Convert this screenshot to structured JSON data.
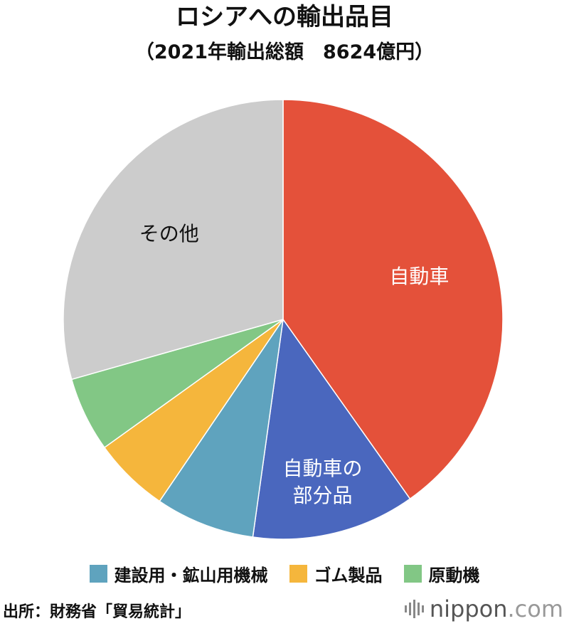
{
  "chart_data": {
    "type": "pie",
    "title": "ロシアへの輸出品目",
    "subtitle": "（2021年輸出総額　8624億円）",
    "start_angle_deg": 0,
    "direction": "clockwise",
    "slices": [
      {
        "label": "自動車",
        "value": 40.2,
        "color": "#E4513A",
        "label_color": "#ffffff",
        "labeled": true
      },
      {
        "label": "自動車の部分品",
        "value": 12.0,
        "color": "#4A67BE",
        "label_color": "#ffffff",
        "labeled": true,
        "label_lines": [
          "自動車の",
          "部分品"
        ]
      },
      {
        "label": "建設用・鉱山用機械",
        "value": 7.3,
        "color": "#5FA3BE",
        "label_color": "#ffffff",
        "labeled": false
      },
      {
        "label": "ゴム製品",
        "value": 5.6,
        "color": "#F5B63C",
        "label_color": "#ffffff",
        "labeled": false
      },
      {
        "label": "原動機",
        "value": 5.5,
        "color": "#82C785",
        "label_color": "#ffffff",
        "labeled": false
      },
      {
        "label": "その他",
        "value": 29.4,
        "color": "#CCCCCC",
        "label_color": "#111111",
        "labeled": true
      }
    ],
    "legend": {
      "placement": "bottom",
      "entries": [
        {
          "label": "建設用・鉱山用機械",
          "color": "#5FA3BE"
        },
        {
          "label": "ゴム製品",
          "color": "#F5B63C"
        },
        {
          "label": "原動機",
          "color": "#82C785"
        }
      ]
    },
    "slice_border_color": "#ffffff"
  },
  "source": "出所：財務省「貿易統計」",
  "brand": {
    "name": "nippon",
    "suffix": ".com",
    "name_color": "#555555",
    "suffix_color": "#999999"
  }
}
